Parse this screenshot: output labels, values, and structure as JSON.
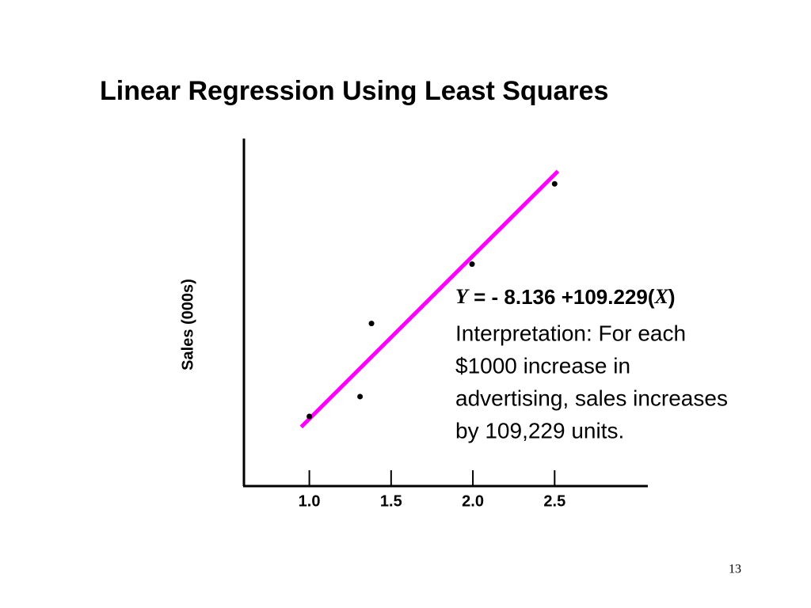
{
  "chart_data": {
    "type": "scatter",
    "title": "Linear Regression Using Least Squares",
    "y_label": "Sales (000s)",
    "x": [
      1.0,
      1.31,
      1.38,
      1.995,
      2.5
    ],
    "values": [
      102.7,
      116,
      165,
      204.8,
      258.6
    ],
    "color": "#000000",
    "fit": {
      "x": [
        0.95,
        2.52
      ],
      "values": [
        95.63,
        267.12
      ],
      "color": "#ff00ff"
    },
    "xlim": [
      0.6,
      3.07
    ],
    "ylim": [
      56,
      289
    ],
    "xticks": [
      {
        "value": 1,
        "label": "1.0"
      },
      1.5,
      {
        "value": 2,
        "label": "2.0"
      },
      2.5
    ],
    "equation": {
      "y": "Y",
      "middle": " = - 8.136 +109.229(",
      "x": "X",
      "end": ")"
    },
    "interpretation": [
      "Interpretation: For each",
      "$1000 increase in",
      "advertising, sales increases",
      "by 109,229 units."
    ],
    "page_number": "13"
  }
}
